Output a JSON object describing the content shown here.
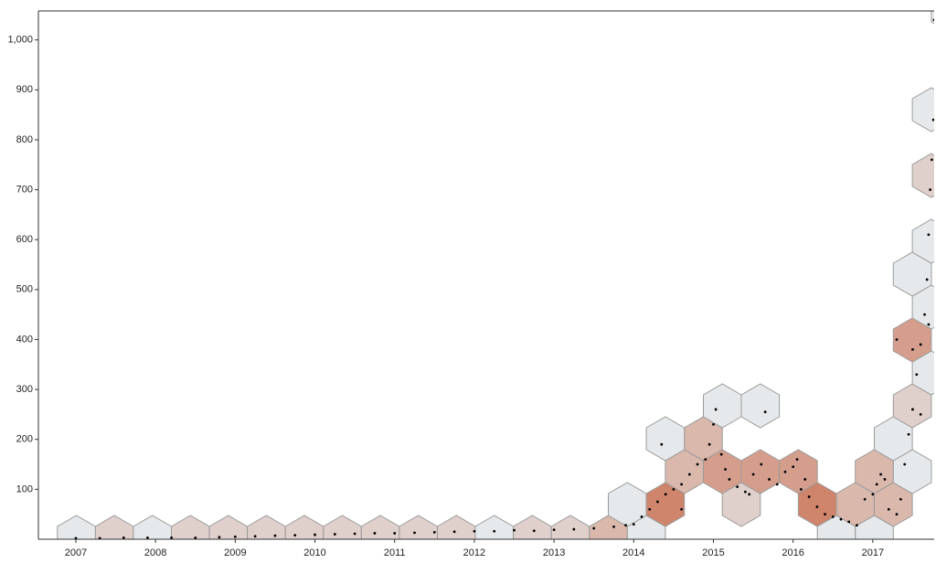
{
  "chart_data": {
    "type": "hexbin",
    "x": [
      2007.0,
      2007.3,
      2007.6,
      2007.9,
      2008.2,
      2008.5,
      2008.8,
      2009.0,
      2009.25,
      2009.5,
      2009.75,
      2010.0,
      2010.25,
      2010.5,
      2010.75,
      2011.0,
      2011.25,
      2011.5,
      2011.75,
      2012.0,
      2012.25,
      2012.5,
      2012.75,
      2013.0,
      2013.25,
      2013.5,
      2013.75,
      2013.9,
      2014.0,
      2014.1,
      2014.2,
      2014.3,
      2014.4,
      2014.5,
      2014.6,
      2014.7,
      2014.8,
      2014.9,
      2014.95,
      2015.0,
      2015.03,
      2015.1,
      2015.15,
      2015.2,
      2015.3,
      2015.4,
      2015.5,
      2015.6,
      2015.65,
      2015.7,
      2015.8,
      2015.9,
      2016.0,
      2016.05,
      2016.1,
      2016.2,
      2016.3,
      2016.4,
      2016.5,
      2016.6,
      2016.7,
      2016.8,
      2016.9,
      2017.0,
      2017.05,
      2017.1,
      2017.15,
      2017.2,
      2017.3,
      2017.35,
      2017.4,
      2017.45,
      2017.5,
      2017.55,
      2017.6,
      2017.65,
      2017.68,
      2017.7,
      2017.72,
      2017.74,
      2017.76,
      2017.77,
      2014.35,
      2014.6,
      2017.5,
      2017.6,
      2017.3,
      2015.45,
      2016.15,
      2017.7
    ],
    "values": [
      2,
      2,
      3,
      3,
      3,
      3,
      4,
      5,
      6,
      7,
      8,
      9,
      10,
      11,
      12,
      12,
      13,
      14,
      15,
      16,
      16,
      18,
      17,
      19,
      20,
      22,
      25,
      28,
      30,
      45,
      60,
      75,
      90,
      100,
      110,
      130,
      150,
      160,
      190,
      230,
      260,
      170,
      140,
      120,
      105,
      95,
      130,
      150,
      255,
      120,
      110,
      135,
      145,
      160,
      100,
      85,
      65,
      50,
      45,
      40,
      35,
      28,
      80,
      90,
      110,
      130,
      120,
      60,
      50,
      80,
      150,
      210,
      260,
      330,
      390,
      450,
      520,
      610,
      700,
      760,
      840,
      1040,
      190,
      60,
      380,
      250,
      400,
      90,
      120,
      430
    ],
    "color": "#000000",
    "bin_colors": [
      "#e3e7ea",
      "#c9785c"
    ],
    "xlim": [
      2006.53,
      2017.77
    ],
    "xticks": [
      2007,
      2008,
      2009,
      2010,
      2011,
      2012,
      2013,
      2014,
      2015,
      2016,
      2017
    ],
    "ylim": [
      0,
      1058
    ],
    "yticks": [
      100,
      200,
      300,
      400,
      500,
      600,
      700,
      800,
      900,
      {
        "value": 1000,
        "label": "1,000"
      }
    ]
  }
}
